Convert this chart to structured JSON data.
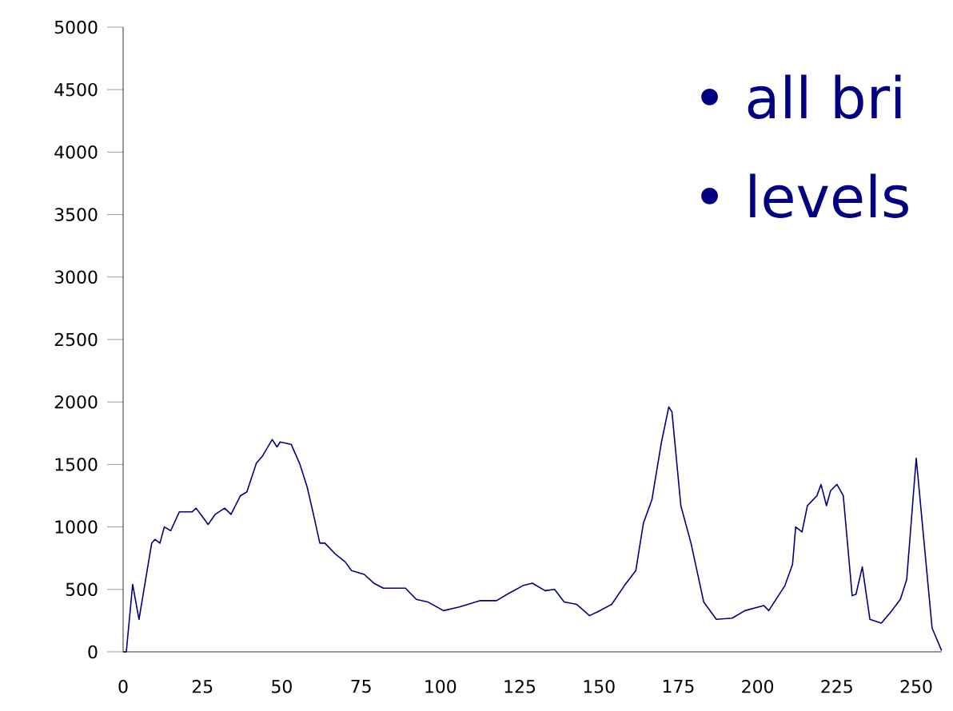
{
  "chart_data": {
    "type": "line",
    "annotations": [
      "• all bri",
      "• levels"
    ],
    "x": [
      0,
      1,
      3,
      5,
      9,
      10,
      11.6,
      13,
      15,
      17.7,
      21.7,
      23,
      26.8,
      29,
      32,
      34,
      37,
      39,
      42,
      44,
      47,
      48.5,
      49.5,
      53,
      55.6,
      58,
      60,
      62,
      63.6,
      67,
      70,
      72,
      76,
      79,
      82,
      89,
      92.4,
      96,
      101,
      106,
      112.6,
      117.7,
      121,
      126,
      129,
      133,
      136,
      139,
      143,
      147,
      149.5,
      154,
      158,
      161.6,
      164,
      166.7,
      169.7,
      172,
      173,
      175.8,
      179,
      183,
      187,
      192,
      196,
      202,
      203.5,
      208.6,
      211,
      212,
      214,
      215.7,
      218.7,
      220,
      221.7,
      223,
      225,
      227,
      229.8,
      231,
      233,
      235.4,
      239,
      242,
      245,
      247,
      250,
      252.5,
      255,
      258
    ],
    "values": [
      0,
      0,
      540,
      260,
      870,
      900,
      870,
      1000,
      970,
      1120,
      1120,
      1150,
      1020,
      1100,
      1150,
      1100,
      1250,
      1280,
      1510,
      1570,
      1700,
      1640,
      1680,
      1660,
      1510,
      1320,
      1100,
      870,
      870,
      780,
      720,
      650,
      620,
      550,
      510,
      510,
      420,
      400,
      330,
      360,
      410,
      410,
      460,
      530,
      550,
      490,
      500,
      400,
      380,
      290,
      320,
      380,
      530,
      650,
      1030,
      1220,
      1680,
      1960,
      1920,
      1170,
      870,
      400,
      260,
      270,
      330,
      370,
      330,
      530,
      700,
      1000,
      960,
      1170,
      1250,
      1340,
      1170,
      1290,
      1340,
      1250,
      450,
      460,
      680,
      260,
      230,
      320,
      420,
      580,
      1550,
      870,
      190,
      10
    ],
    "color": "#000080",
    "xlim": [
      0,
      258
    ],
    "ylim": [
      0,
      5000
    ],
    "xticks": [
      0,
      25,
      50,
      75,
      100,
      125,
      150,
      175,
      200,
      225,
      250
    ],
    "yticks": [
      0,
      500,
      1000,
      1500,
      2000,
      2500,
      3000,
      3500,
      4000,
      4500,
      5000
    ]
  }
}
